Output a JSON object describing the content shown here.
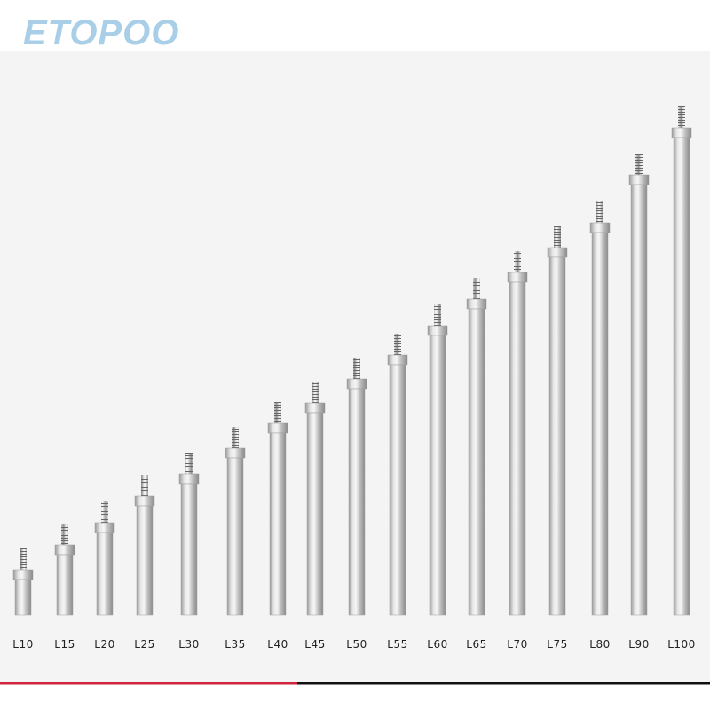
{
  "brand": "ETOPOO",
  "labels": [
    "L10",
    "L15",
    "L20",
    "L25",
    "L30",
    "L35",
    "L40",
    "L45",
    "L50",
    "L55",
    "L60",
    "L65",
    "L70",
    "L75",
    "L80",
    "L90",
    "L100"
  ]
}
